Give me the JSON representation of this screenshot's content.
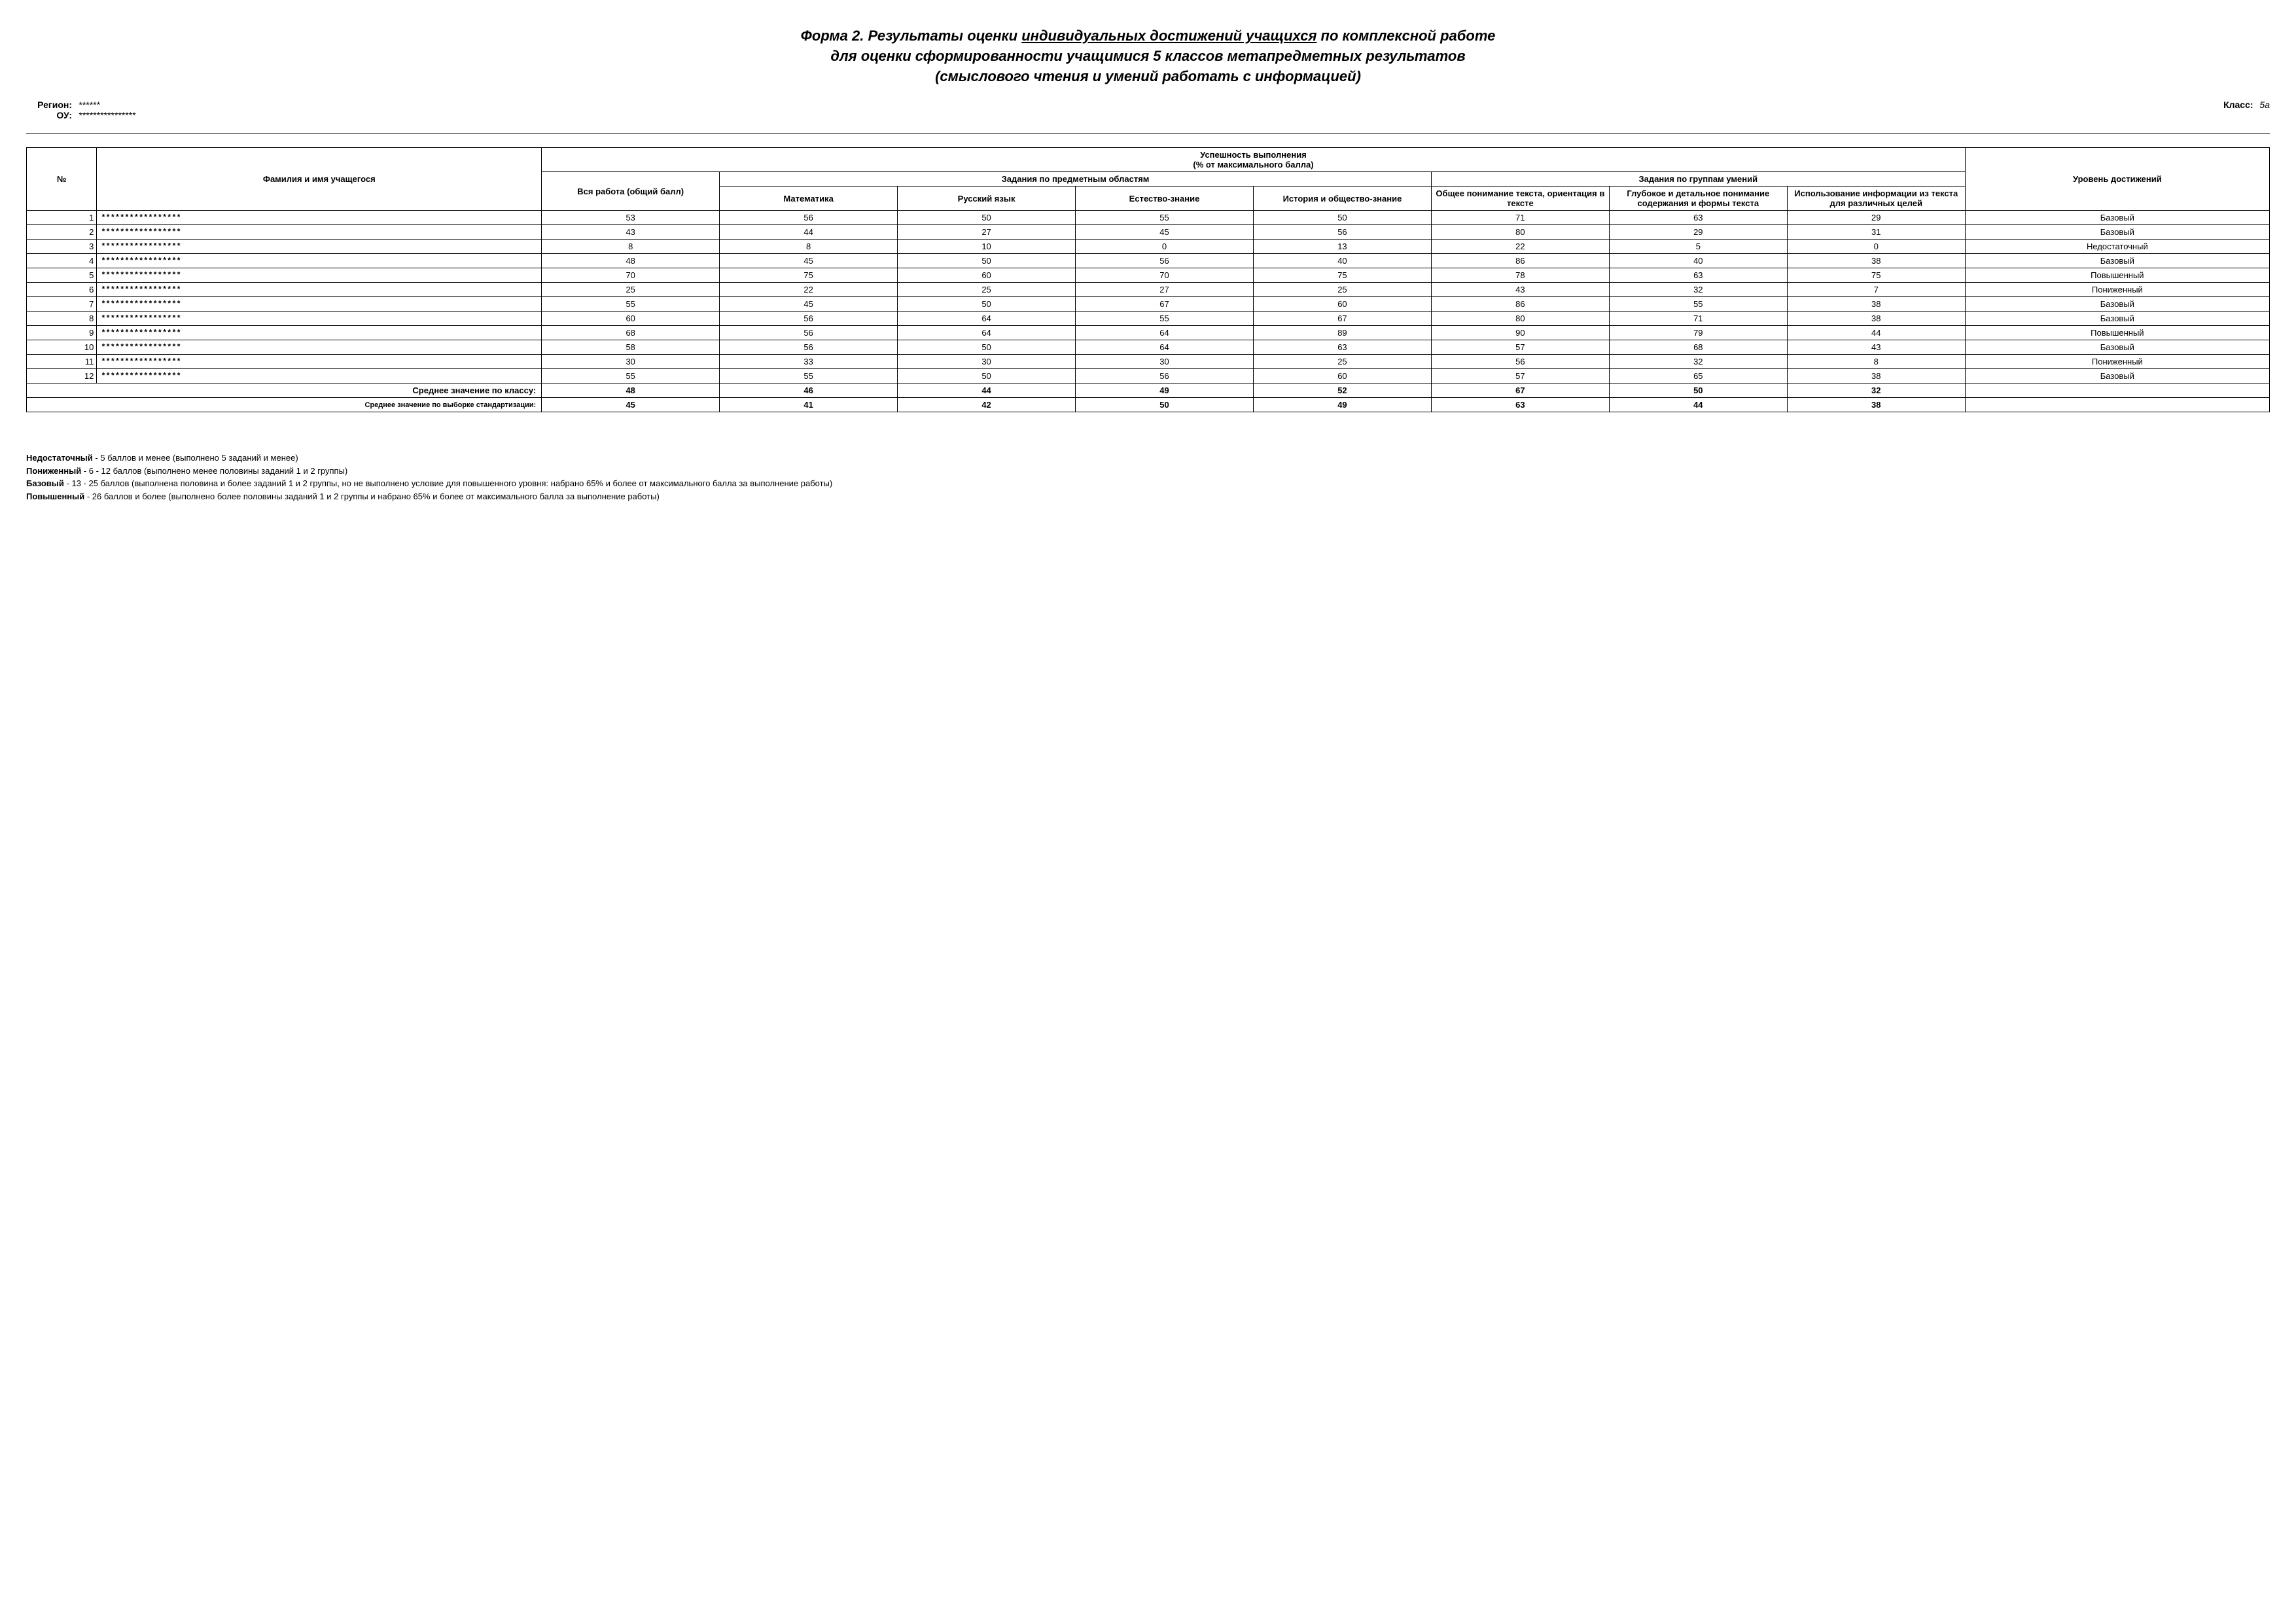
{
  "title": {
    "l1a": "Форма 2. Результаты оценки ",
    "l1u": "индивидуальных достижений учащихся",
    "l1b": " по комплексной работе",
    "l2": "для оценки сформированности учащимися 5 классов метапредметных результатов",
    "l3": "(смыслового чтения и умений работать с информацией)"
  },
  "info": {
    "region_label": "Регион:",
    "region_value": "******",
    "ou_label": "ОУ:",
    "ou_value": "****************",
    "class_label": "Класс:",
    "class_value": "5а"
  },
  "headers": {
    "top_group": "Успешность выполнения\n(% от максимального балла)",
    "num": "№",
    "name": "Фамилия и имя учащегося",
    "total": "Вся работа (общий балл)",
    "subj_group": "Задания по предметным областям",
    "skill_group": "Задания по группам умений",
    "level": "Уровень достижений",
    "subj": [
      "Математика",
      "Русский язык",
      "Естество-знание",
      "История и общество-знание"
    ],
    "skill": [
      "Общее понимание текста, ориентация в тексте",
      "Глубокое и детальное понимание содержания и формы текста",
      "Использование информации из текста для различных целей"
    ]
  },
  "rows": [
    {
      "n": "1",
      "name": "*****************",
      "v": [
        53,
        56,
        50,
        55,
        50,
        71,
        63,
        29
      ],
      "level": "Базовый"
    },
    {
      "n": "2",
      "name": "*****************",
      "v": [
        43,
        44,
        27,
        45,
        56,
        80,
        29,
        31
      ],
      "level": "Базовый"
    },
    {
      "n": "3",
      "name": "*****************",
      "v": [
        8,
        8,
        10,
        0,
        13,
        22,
        5,
        0
      ],
      "level": "Недостаточный"
    },
    {
      "n": "4",
      "name": "*****************",
      "v": [
        48,
        45,
        50,
        56,
        40,
        86,
        40,
        38
      ],
      "level": "Базовый"
    },
    {
      "n": "5",
      "name": "*****************",
      "v": [
        70,
        75,
        60,
        70,
        75,
        78,
        63,
        75
      ],
      "level": "Повышенный"
    },
    {
      "n": "6",
      "name": "*****************",
      "v": [
        25,
        22,
        25,
        27,
        25,
        43,
        32,
        7
      ],
      "level": "Пониженный"
    },
    {
      "n": "7",
      "name": "*****************",
      "v": [
        55,
        45,
        50,
        67,
        60,
        86,
        55,
        38
      ],
      "level": "Базовый"
    },
    {
      "n": "8",
      "name": "*****************",
      "v": [
        60,
        56,
        64,
        55,
        67,
        80,
        71,
        38
      ],
      "level": "Базовый"
    },
    {
      "n": "9",
      "name": "*****************",
      "v": [
        68,
        56,
        64,
        64,
        89,
        90,
        79,
        44
      ],
      "level": "Повышенный"
    },
    {
      "n": "10",
      "name": "*****************",
      "v": [
        58,
        56,
        50,
        64,
        63,
        57,
        68,
        43
      ],
      "level": "Базовый"
    },
    {
      "n": "11",
      "name": "*****************",
      "v": [
        30,
        33,
        30,
        30,
        25,
        56,
        32,
        8
      ],
      "level": "Пониженный"
    },
    {
      "n": "12",
      "name": "*****************",
      "v": [
        55,
        55,
        50,
        56,
        60,
        57,
        65,
        38
      ],
      "level": "Базовый"
    }
  ],
  "avg_class": {
    "label": "Среднее значение по классу:",
    "v": [
      48,
      46,
      44,
      49,
      52,
      67,
      50,
      32
    ]
  },
  "avg_std": {
    "label": "Среднее значение по выборке стандартизации:",
    "v": [
      45,
      41,
      42,
      50,
      49,
      63,
      44,
      38
    ]
  },
  "legend": [
    {
      "term": "Недостаточный",
      "text": " - 5 баллов и менее (выполнено 5 заданий и менее)"
    },
    {
      "term": "Пониженный",
      "text": " - 6 - 12 баллов (выполнено менее половины заданий 1 и 2 группы)"
    },
    {
      "term": "Базовый",
      "text": " -  13 - 25 баллов (выполнена половина и более заданий 1 и 2 группы, но не выполнено условие для повышенного уровня: набрано 65% и более от максимального балла за выполнение работы)"
    },
    {
      "term": "Повышенный",
      "text": " - 26 баллов и более (выполнено более половины заданий 1 и 2 группы и набрано  65% и более от максимального балла за выполнение работы)"
    }
  ]
}
